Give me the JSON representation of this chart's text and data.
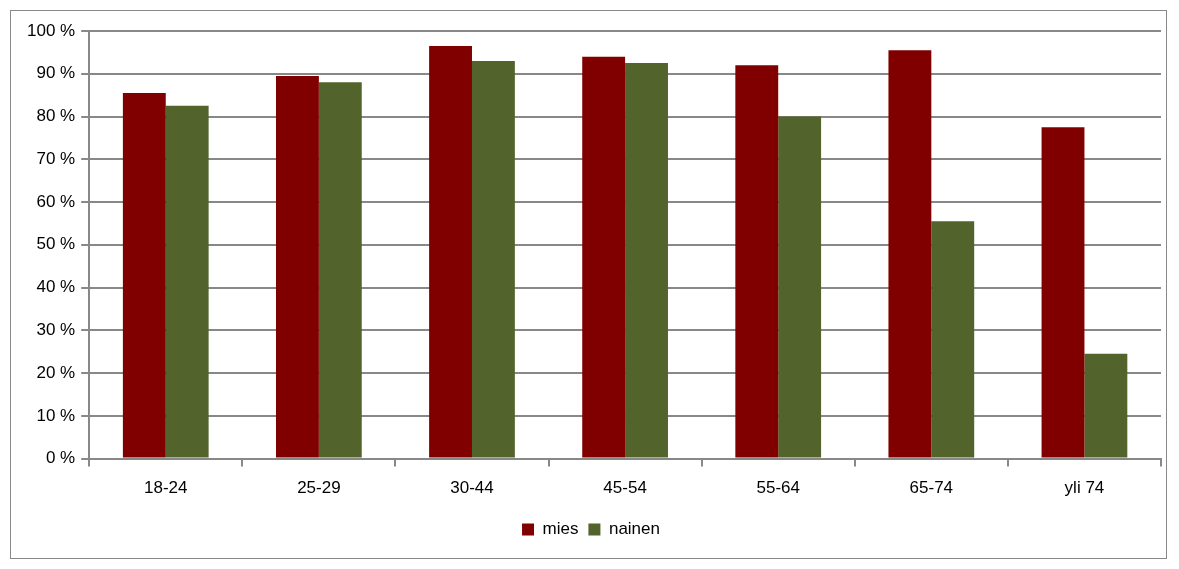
{
  "chart_data": {
    "type": "bar",
    "categories": [
      "18-24",
      "25-29",
      "30-44",
      "45-54",
      "55-64",
      "65-74",
      "yli 74"
    ],
    "series": [
      {
        "name": "mies",
        "color": "#800000",
        "values": [
          85.5,
          89.5,
          96.5,
          94,
          92,
          95.5,
          77.5
        ]
      },
      {
        "name": "nainen",
        "color": "#52632b",
        "values": [
          82.5,
          88,
          93,
          92.5,
          80,
          55.5,
          24.5
        ]
      }
    ],
    "ylim": [
      0,
      100
    ],
    "yticks": [
      {
        "value": 0,
        "label": "0 %"
      },
      {
        "value": 10,
        "label": "10 %"
      },
      {
        "value": 20,
        "label": "20 %"
      },
      {
        "value": 30,
        "label": "30 %"
      },
      {
        "value": 40,
        "label": "40 %"
      },
      {
        "value": 50,
        "label": "50 %"
      },
      {
        "value": 60,
        "label": "60 %"
      },
      {
        "value": 70,
        "label": "70 %"
      },
      {
        "value": 80,
        "label": "80 %"
      },
      {
        "value": 90,
        "label": "90 %"
      },
      {
        "value": 100,
        "label": "100 %"
      }
    ],
    "grid": "y",
    "legend": "bottom"
  }
}
